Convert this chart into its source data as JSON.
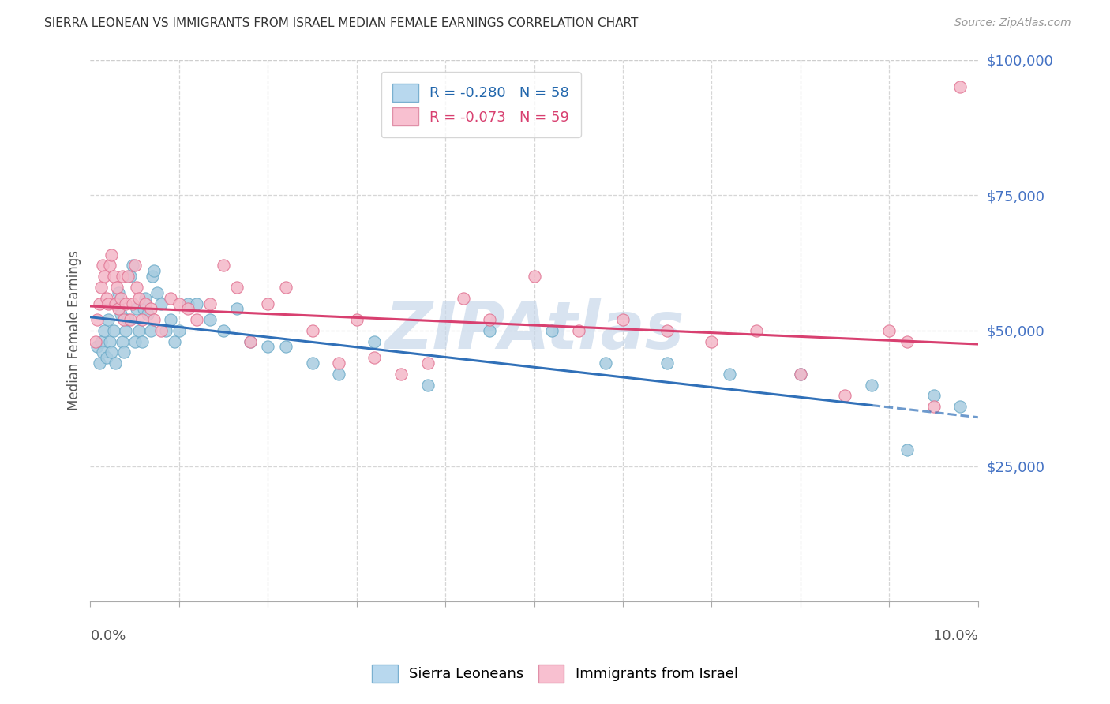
{
  "title": "SIERRA LEONEAN VS IMMIGRANTS FROM ISRAEL MEDIAN FEMALE EARNINGS CORRELATION CHART",
  "source": "Source: ZipAtlas.com",
  "ylabel": "Median Female Earnings",
  "x_range": [
    0.0,
    10.0
  ],
  "y_range": [
    0,
    100000
  ],
  "y_ticks": [
    25000,
    50000,
    75000,
    100000
  ],
  "y_tick_labels": [
    "$25,000",
    "$50,000",
    "$75,000",
    "$100,000"
  ],
  "blue_legend": "R = -0.280   N = 58",
  "pink_legend": "R = -0.073   N = 59",
  "blue_scatter_color": "#a8cce0",
  "pink_scatter_color": "#f4b8c8",
  "blue_edge_color": "#6aaac8",
  "pink_edge_color": "#e07090",
  "blue_line_color": "#3070b8",
  "pink_line_color": "#d84070",
  "background_color": "#ffffff",
  "grid_color": "#cccccc",
  "right_axis_color": "#4472c4",
  "watermark_color": "#c8d8ea",
  "blue_line_x0": 0.0,
  "blue_line_y0": 52500,
  "blue_line_x1": 10.0,
  "blue_line_y1": 34000,
  "blue_dash_start_x": 8.8,
  "pink_line_x0": 0.0,
  "pink_line_y0": 54500,
  "pink_line_x1": 10.0,
  "pink_line_y1": 47500,
  "scatter_blue_x": [
    0.08,
    0.1,
    0.12,
    0.14,
    0.16,
    0.18,
    0.2,
    0.22,
    0.24,
    0.26,
    0.28,
    0.3,
    0.32,
    0.34,
    0.36,
    0.38,
    0.4,
    0.42,
    0.45,
    0.48,
    0.5,
    0.52,
    0.55,
    0.58,
    0.6,
    0.62,
    0.65,
    0.68,
    0.7,
    0.72,
    0.75,
    0.8,
    0.85,
    0.9,
    0.95,
    1.0,
    1.1,
    1.2,
    1.35,
    1.5,
    1.65,
    1.8,
    2.0,
    2.2,
    2.5,
    2.8,
    3.2,
    3.8,
    4.5,
    5.2,
    5.8,
    6.5,
    7.2,
    8.0,
    8.8,
    9.2,
    9.5,
    9.8
  ],
  "scatter_blue_y": [
    47000,
    44000,
    48000,
    46000,
    50000,
    45000,
    52000,
    48000,
    46000,
    50000,
    44000,
    55000,
    57000,
    53000,
    48000,
    46000,
    50000,
    52000,
    60000,
    62000,
    48000,
    54000,
    50000,
    48000,
    54000,
    56000,
    53000,
    50000,
    60000,
    61000,
    57000,
    55000,
    50000,
    52000,
    48000,
    50000,
    55000,
    55000,
    52000,
    50000,
    54000,
    48000,
    47000,
    47000,
    44000,
    42000,
    48000,
    40000,
    50000,
    50000,
    44000,
    44000,
    42000,
    42000,
    40000,
    28000,
    38000,
    36000
  ],
  "scatter_pink_x": [
    0.06,
    0.08,
    0.1,
    0.12,
    0.14,
    0.16,
    0.18,
    0.2,
    0.22,
    0.24,
    0.26,
    0.28,
    0.3,
    0.32,
    0.34,
    0.36,
    0.38,
    0.4,
    0.42,
    0.45,
    0.48,
    0.5,
    0.52,
    0.55,
    0.58,
    0.62,
    0.68,
    0.72,
    0.8,
    0.9,
    1.0,
    1.1,
    1.2,
    1.35,
    1.5,
    1.65,
    1.8,
    2.0,
    2.2,
    2.5,
    2.8,
    3.0,
    3.2,
    3.5,
    3.8,
    4.2,
    4.5,
    5.0,
    5.5,
    6.0,
    6.5,
    7.0,
    7.5,
    8.0,
    8.5,
    9.0,
    9.2,
    9.5,
    9.8
  ],
  "scatter_pink_y": [
    48000,
    52000,
    55000,
    58000,
    62000,
    60000,
    56000,
    55000,
    62000,
    64000,
    60000,
    55000,
    58000,
    54000,
    56000,
    60000,
    52000,
    55000,
    60000,
    52000,
    55000,
    62000,
    58000,
    56000,
    52000,
    55000,
    54000,
    52000,
    50000,
    56000,
    55000,
    54000,
    52000,
    55000,
    62000,
    58000,
    48000,
    55000,
    58000,
    50000,
    44000,
    52000,
    45000,
    42000,
    44000,
    56000,
    52000,
    60000,
    50000,
    52000,
    50000,
    48000,
    50000,
    42000,
    38000,
    50000,
    48000,
    36000,
    95000
  ]
}
